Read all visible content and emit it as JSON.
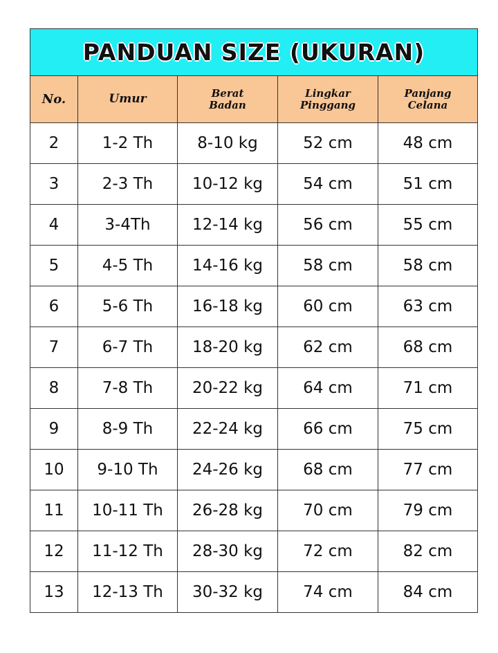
{
  "title": "PANDUAN SIZE (UKURAN)",
  "colors": {
    "title_bg": "#22eef4",
    "header_bg": "#f9c696",
    "border": "#333333"
  },
  "columns": [
    {
      "line1": "No.",
      "line2": ""
    },
    {
      "line1": "Umur",
      "line2": ""
    },
    {
      "line1": "Berat",
      "line2": "Badan"
    },
    {
      "line1": "Lingkar",
      "line2": "Pinggang"
    },
    {
      "line1": "Panjang",
      "line2": "Celana"
    }
  ],
  "rows": [
    [
      "2",
      "1-2 Th",
      "8-10 kg",
      "52 cm",
      "48 cm"
    ],
    [
      "3",
      "2-3 Th",
      "10-12 kg",
      "54 cm",
      "51 cm"
    ],
    [
      "4",
      "3-4Th",
      "12-14 kg",
      "56 cm",
      "55 cm"
    ],
    [
      "5",
      "4-5 Th",
      "14-16 kg",
      "58 cm",
      "58 cm"
    ],
    [
      "6",
      "5-6 Th",
      "16-18 kg",
      "60 cm",
      "63 cm"
    ],
    [
      "7",
      "6-7 Th",
      "18-20 kg",
      "62 cm",
      "68 cm"
    ],
    [
      "8",
      "7-8 Th",
      "20-22 kg",
      "64 cm",
      "71 cm"
    ],
    [
      "9",
      "8-9 Th",
      "22-24 kg",
      "66 cm",
      "75 cm"
    ],
    [
      "10",
      "9-10 Th",
      "24-26 kg",
      "68 cm",
      "77 cm"
    ],
    [
      "11",
      "10-11 Th",
      "26-28 kg",
      "70 cm",
      "79 cm"
    ],
    [
      "12",
      "11-12 Th",
      "28-30 kg",
      "72 cm",
      "82 cm"
    ],
    [
      "13",
      "12-13 Th",
      "30-32 kg",
      "74 cm",
      "84 cm"
    ]
  ]
}
